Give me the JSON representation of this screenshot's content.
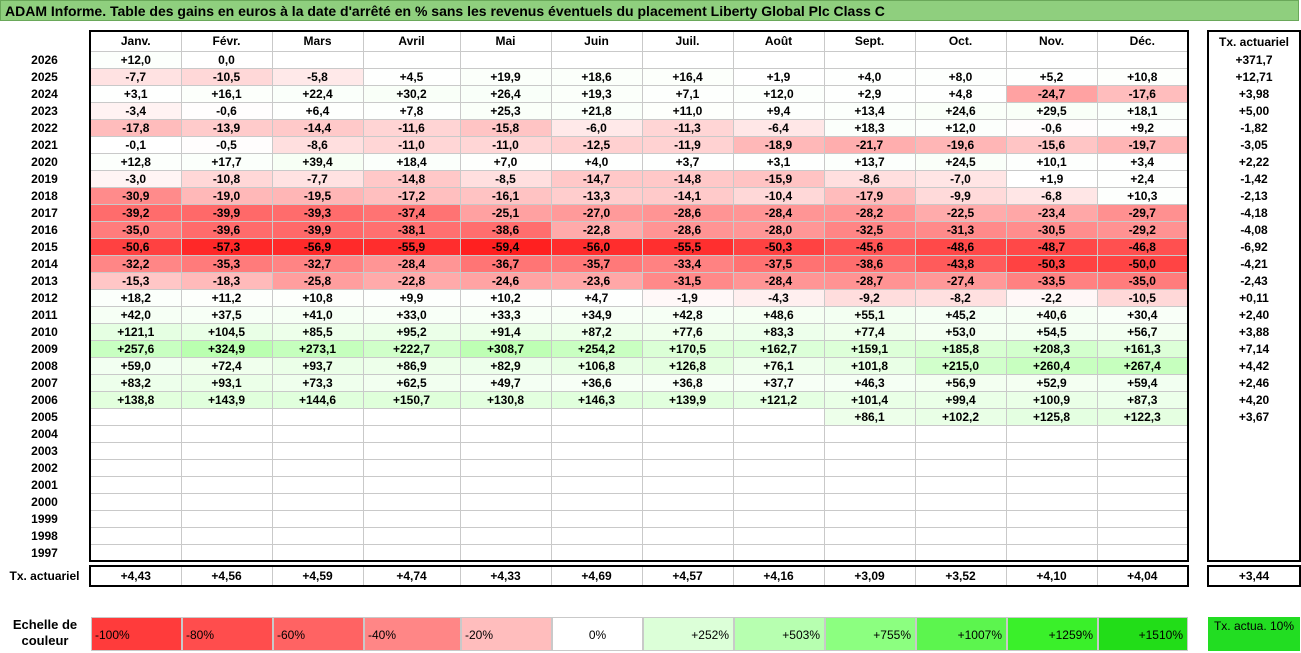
{
  "title": "ADAM Informe. Table des gains en euros à la date d'arrêté en % sans les revenus éventuels du placement Liberty Global Plc Class C",
  "months": [
    "Janv.",
    "Févr.",
    "Mars",
    "Avril",
    "Mai",
    "Juin",
    "Juil.",
    "Août",
    "Sept.",
    "Oct.",
    "Nov.",
    "Déc."
  ],
  "tx_header": "Tx. actuariel",
  "rows": [
    {
      "year": "2026",
      "vals": [
        "+12,0",
        "0,0",
        "",
        "",
        "",
        "",
        "",
        "",
        "",
        "",
        "",
        ""
      ],
      "tx": "+371,7"
    },
    {
      "year": "2025",
      "vals": [
        "-7,7",
        "-10,5",
        "-5,8",
        "+4,5",
        "+19,9",
        "+18,6",
        "+16,4",
        "+1,9",
        "+4,0",
        "+8,0",
        "+5,2",
        "+10,8"
      ],
      "tx": "+12,71"
    },
    {
      "year": "2024",
      "vals": [
        "+3,1",
        "+16,1",
        "+22,4",
        "+30,2",
        "+26,4",
        "+19,3",
        "+7,1",
        "+12,0",
        "+2,9",
        "+4,8",
        "-24,7",
        "-17,6"
      ],
      "tx": "+3,98"
    },
    {
      "year": "2023",
      "vals": [
        "-3,4",
        "-0,6",
        "+6,4",
        "+7,8",
        "+25,3",
        "+21,8",
        "+11,0",
        "+9,4",
        "+13,4",
        "+24,6",
        "+29,5",
        "+18,1"
      ],
      "tx": "+5,00"
    },
    {
      "year": "2022",
      "vals": [
        "-17,8",
        "-13,9",
        "-14,4",
        "-11,6",
        "-15,8",
        "-6,0",
        "-11,3",
        "-6,4",
        "+18,3",
        "+12,0",
        "-0,6",
        "+9,2"
      ],
      "tx": "-1,82"
    },
    {
      "year": "2021",
      "vals": [
        "-0,1",
        "-0,5",
        "-8,6",
        "-11,0",
        "-11,0",
        "-12,5",
        "-11,9",
        "-18,9",
        "-21,7",
        "-19,6",
        "-15,6",
        "-19,7"
      ],
      "tx": "-3,05"
    },
    {
      "year": "2020",
      "vals": [
        "+12,8",
        "+17,7",
        "+39,4",
        "+18,4",
        "+7,0",
        "+4,0",
        "+3,7",
        "+3,1",
        "+13,7",
        "+24,5",
        "+10,1",
        "+3,4"
      ],
      "tx": "+2,22"
    },
    {
      "year": "2019",
      "vals": [
        "-3,0",
        "-10,8",
        "-7,7",
        "-14,8",
        "-8,5",
        "-14,7",
        "-14,8",
        "-15,9",
        "-8,6",
        "-7,0",
        "+1,9",
        "+2,4"
      ],
      "tx": "-1,42"
    },
    {
      "year": "2018",
      "vals": [
        "-30,9",
        "-19,0",
        "-19,5",
        "-17,2",
        "-16,1",
        "-13,3",
        "-14,1",
        "-10,4",
        "-17,9",
        "-9,9",
        "-6,8",
        "+10,3"
      ],
      "tx": "-2,13"
    },
    {
      "year": "2017",
      "vals": [
        "-39,2",
        "-39,9",
        "-39,3",
        "-37,4",
        "-25,1",
        "-27,0",
        "-28,6",
        "-28,4",
        "-28,2",
        "-22,5",
        "-23,4",
        "-29,7"
      ],
      "tx": "-4,18"
    },
    {
      "year": "2016",
      "vals": [
        "-35,0",
        "-39,6",
        "-39,9",
        "-38,1",
        "-38,6",
        "-22,8",
        "-28,6",
        "-28,0",
        "-32,5",
        "-31,3",
        "-30,5",
        "-29,2"
      ],
      "tx": "-4,08"
    },
    {
      "year": "2015",
      "vals": [
        "-50,6",
        "-57,3",
        "-56,9",
        "-55,9",
        "-59,4",
        "-56,0",
        "-55,5",
        "-50,3",
        "-45,6",
        "-48,6",
        "-48,7",
        "-46,8"
      ],
      "tx": "-6,92"
    },
    {
      "year": "2014",
      "vals": [
        "-32,2",
        "-35,3",
        "-32,7",
        "-28,4",
        "-36,7",
        "-35,7",
        "-33,4",
        "-37,5",
        "-38,6",
        "-43,8",
        "-50,3",
        "-50,0"
      ],
      "tx": "-4,21"
    },
    {
      "year": "2013",
      "vals": [
        "-15,3",
        "-18,3",
        "-25,8",
        "-22,8",
        "-24,6",
        "-23,6",
        "-31,5",
        "-28,4",
        "-28,7",
        "-27,4",
        "-33,5",
        "-35,0"
      ],
      "tx": "-2,43"
    },
    {
      "year": "2012",
      "vals": [
        "+18,2",
        "+11,2",
        "+10,8",
        "+9,9",
        "+10,2",
        "+4,7",
        "-1,9",
        "-4,3",
        "-9,2",
        "-8,2",
        "-2,2",
        "-10,5"
      ],
      "tx": "+0,11"
    },
    {
      "year": "2011",
      "vals": [
        "+42,0",
        "+37,5",
        "+41,0",
        "+33,0",
        "+33,3",
        "+34,9",
        "+42,8",
        "+48,6",
        "+55,1",
        "+45,2",
        "+40,6",
        "+30,4"
      ],
      "tx": "+2,40"
    },
    {
      "year": "2010",
      "vals": [
        "+121,1",
        "+104,5",
        "+85,5",
        "+95,2",
        "+91,4",
        "+87,2",
        "+77,6",
        "+83,3",
        "+77,4",
        "+53,0",
        "+54,5",
        "+56,7"
      ],
      "tx": "+3,88"
    },
    {
      "year": "2009",
      "vals": [
        "+257,6",
        "+324,9",
        "+273,1",
        "+222,7",
        "+308,7",
        "+254,2",
        "+170,5",
        "+162,7",
        "+159,1",
        "+185,8",
        "+208,3",
        "+161,3"
      ],
      "tx": "+7,14"
    },
    {
      "year": "2008",
      "vals": [
        "+59,0",
        "+72,4",
        "+93,7",
        "+86,9",
        "+82,9",
        "+106,8",
        "+126,8",
        "+76,1",
        "+101,8",
        "+215,0",
        "+260,4",
        "+267,4"
      ],
      "tx": "+4,42"
    },
    {
      "year": "2007",
      "vals": [
        "+83,2",
        "+93,1",
        "+73,3",
        "+62,5",
        "+49,7",
        "+36,6",
        "+36,8",
        "+37,7",
        "+46,3",
        "+56,9",
        "+52,9",
        "+59,4"
      ],
      "tx": "+2,46"
    },
    {
      "year": "2006",
      "vals": [
        "+138,8",
        "+143,9",
        "+144,6",
        "+150,7",
        "+130,8",
        "+146,3",
        "+139,9",
        "+121,2",
        "+101,4",
        "+99,4",
        "+100,9",
        "+87,3"
      ],
      "tx": "+4,20"
    },
    {
      "year": "2005",
      "vals": [
        "",
        "",
        "",
        "",
        "",
        "",
        "",
        "",
        "+86,1",
        "+102,2",
        "+125,8",
        "+122,3"
      ],
      "tx": "+3,67"
    },
    {
      "year": "2004",
      "vals": [
        "",
        "",
        "",
        "",
        "",
        "",
        "",
        "",
        "",
        "",
        "",
        ""
      ],
      "tx": ""
    },
    {
      "year": "2003",
      "vals": [
        "",
        "",
        "",
        "",
        "",
        "",
        "",
        "",
        "",
        "",
        "",
        ""
      ],
      "tx": ""
    },
    {
      "year": "2002",
      "vals": [
        "",
        "",
        "",
        "",
        "",
        "",
        "",
        "",
        "",
        "",
        "",
        ""
      ],
      "tx": ""
    },
    {
      "year": "2001",
      "vals": [
        "",
        "",
        "",
        "",
        "",
        "",
        "",
        "",
        "",
        "",
        "",
        ""
      ],
      "tx": ""
    },
    {
      "year": "2000",
      "vals": [
        "",
        "",
        "",
        "",
        "",
        "",
        "",
        "",
        "",
        "",
        "",
        ""
      ],
      "tx": ""
    },
    {
      "year": "1999",
      "vals": [
        "",
        "",
        "",
        "",
        "",
        "",
        "",
        "",
        "",
        "",
        "",
        ""
      ],
      "tx": ""
    },
    {
      "year": "1998",
      "vals": [
        "",
        "",
        "",
        "",
        "",
        "",
        "",
        "",
        "",
        "",
        "",
        ""
      ],
      "tx": ""
    },
    {
      "year": "1997",
      "vals": [
        "",
        "",
        "",
        "",
        "",
        "",
        "",
        "",
        "",
        "",
        "",
        ""
      ],
      "tx": ""
    }
  ],
  "footer": {
    "label": "Tx. actuariel",
    "vals": [
      "+4,43",
      "+4,56",
      "+4,59",
      "+4,74",
      "+4,33",
      "+4,69",
      "+4,57",
      "+4,16",
      "+3,09",
      "+3,52",
      "+4,10",
      "+4,04"
    ],
    "tx": "+3,44"
  },
  "legend": {
    "label": "Echelle de couleur",
    "items": [
      {
        "label": "-100%",
        "color": "#ff3b3b",
        "kind": "neg"
      },
      {
        "label": "-80%",
        "color": "#ff4d4d",
        "kind": "neg"
      },
      {
        "label": "-60%",
        "color": "#ff6363",
        "kind": "neg"
      },
      {
        "label": "-40%",
        "color": "#ff8686",
        "kind": "neg"
      },
      {
        "label": "-20%",
        "color": "#ffbdbd",
        "kind": "neg"
      },
      {
        "label": "0%",
        "color": "#ffffff",
        "kind": "zero"
      },
      {
        "label": "+252%",
        "color": "#dcffd8",
        "kind": "pos"
      },
      {
        "label": "+503%",
        "color": "#b7ffb0",
        "kind": "pos"
      },
      {
        "label": "+755%",
        "color": "#8cff80",
        "kind": "pos"
      },
      {
        "label": "+1007%",
        "color": "#5cf54e",
        "kind": "pos"
      },
      {
        "label": "+1259%",
        "color": "#3af02a",
        "kind": "pos"
      },
      {
        "label": "+1510%",
        "color": "#22dd18",
        "kind": "pos"
      }
    ],
    "tx_label": "Tx. actua. 10%",
    "tx_color": "#22dd22"
  },
  "colors": {
    "title_bg": "#8fcf7e",
    "neg_max": "#ff1a1a",
    "pos_max": "#22dd18"
  }
}
